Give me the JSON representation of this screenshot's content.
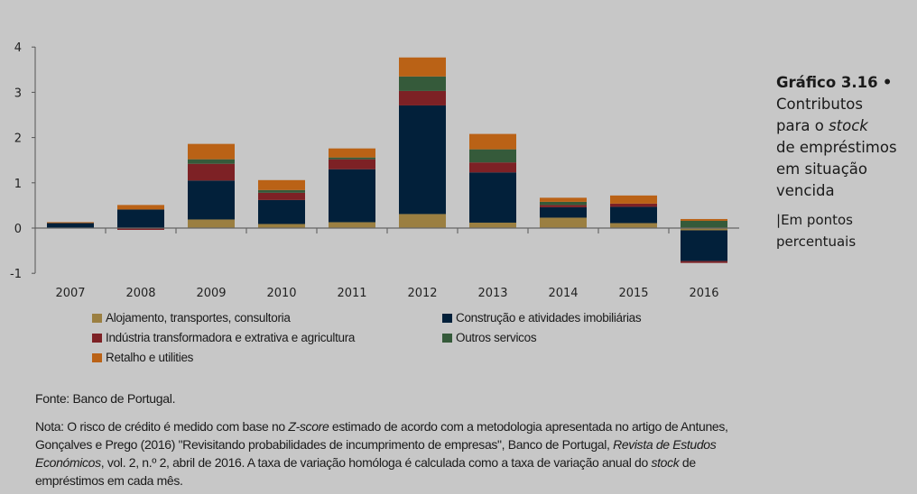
{
  "figure": {
    "label": "Gráfico 3.16",
    "bullet": "•",
    "title_line1": "Contributos",
    "title_line2_pre": "para o ",
    "title_line2_italic": "stock",
    "title_line3": "de empréstimos",
    "title_line4": "em situação",
    "title_line5": "vencida",
    "unit_sep": "|",
    "unit_line1": "Em pontos",
    "unit_line2": "percentuais"
  },
  "source": "Fonte: Banco de Portugal.",
  "note": {
    "p1": "Nota: O risco de crédito é medido com base no ",
    "i1": "Z-score",
    "p2": " estimado de acordo com a metodologia apresentada no artigo de Antunes, Gonçalves e Prego (2016) \"Revisitando probabilidades de incumprimento de empresas\", Banco de Portugal, ",
    "i2": "Revista de Estudos Económicos",
    "p3": ", vol. 2, n.º 2, abril de 2016. A taxa de variação homóloga é calculada como a taxa de variação anual do ",
    "i3": "stock",
    "p4": " de empréstimos em cada mês."
  },
  "chart_data": {
    "type": "bar",
    "stacked": true,
    "title": "Contributos para o stock de empréstimos em situação vencida",
    "xlabel": "",
    "ylabel": "Em pontos percentuais",
    "ylim": [
      -1,
      4
    ],
    "yticks": [
      -1,
      0,
      1,
      2,
      3,
      4
    ],
    "ytick_labels": [
      "-1",
      "0",
      "1",
      "2",
      "3",
      "4"
    ],
    "grid": false,
    "legend_position": "bottom",
    "categories": [
      "2007",
      "2008",
      "2009",
      "2010",
      "2011",
      "2012",
      "2013",
      "2014",
      "2015",
      "2016"
    ],
    "series": [
      {
        "name": "Alojamento, transportes, consultoria",
        "color": "#9b7f41",
        "values": [
          0.01,
          0.01,
          0.19,
          0.09,
          0.13,
          0.31,
          0.12,
          0.23,
          0.11,
          -0.05
        ]
      },
      {
        "name": "Construção e atividades imobiliárias",
        "color": "#02203a",
        "values": [
          0.1,
          0.4,
          0.86,
          0.53,
          1.17,
          2.4,
          1.11,
          0.23,
          0.36,
          -0.68
        ]
      },
      {
        "name": "Indústria transformadora e extrativa e agricultura",
        "color": "#7d2125",
        "values": [
          0.0,
          -0.04,
          0.37,
          0.16,
          0.22,
          0.32,
          0.22,
          0.05,
          0.07,
          -0.04
        ]
      },
      {
        "name": "Outros servicos",
        "color": "#355a3a",
        "values": [
          0.0,
          0.0,
          0.1,
          0.06,
          0.04,
          0.32,
          0.29,
          0.07,
          0.0,
          0.16
        ]
      },
      {
        "name": "Retalho e utilities",
        "color": "#ba6216",
        "values": [
          0.02,
          0.1,
          0.34,
          0.22,
          0.2,
          0.42,
          0.34,
          0.09,
          0.18,
          0.04
        ]
      }
    ]
  }
}
